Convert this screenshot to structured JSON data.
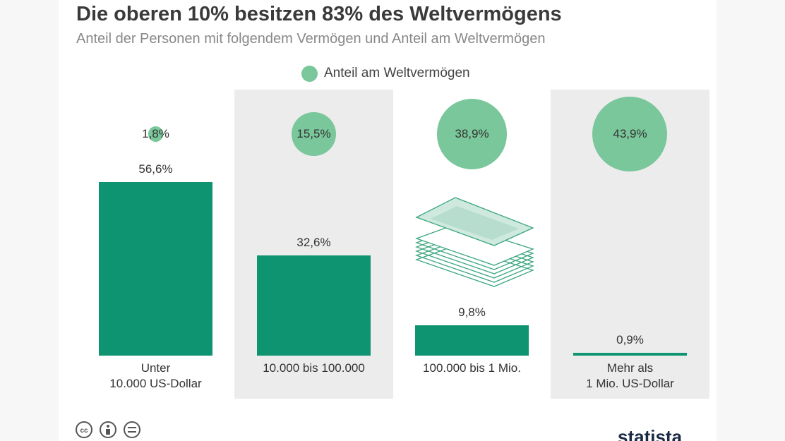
{
  "chart_data": {
    "type": "bar",
    "title": "Die oberen 10% besitzen 83% des Weltvermögens",
    "subtitle": "Anteil der Personen mit folgendem Vermögen und Anteil am Weltvermögen",
    "categories": [
      "Unter\n10.000 US-Dollar",
      "10.000 bis 100.000",
      "100.000 bis 1 Mio.",
      "Mehr als\n1 Mio. US-Dollar"
    ],
    "series": [
      {
        "color": "#0e9471",
        "values": [
          56.6,
          32.6,
          9.8,
          0.9
        ],
        "value_labels": [
          "56,6%",
          "32,6%",
          "9,8%",
          "0,9%"
        ]
      },
      {
        "name": "Anteil am Weltvermögen",
        "type": "bubble",
        "color": "#79c79a",
        "values": [
          1.8,
          15.5,
          38.9,
          43.9
        ],
        "value_labels": [
          "1,8%",
          "15,5%",
          "38,9%",
          "43,9%"
        ]
      }
    ],
    "brand": "statista"
  }
}
